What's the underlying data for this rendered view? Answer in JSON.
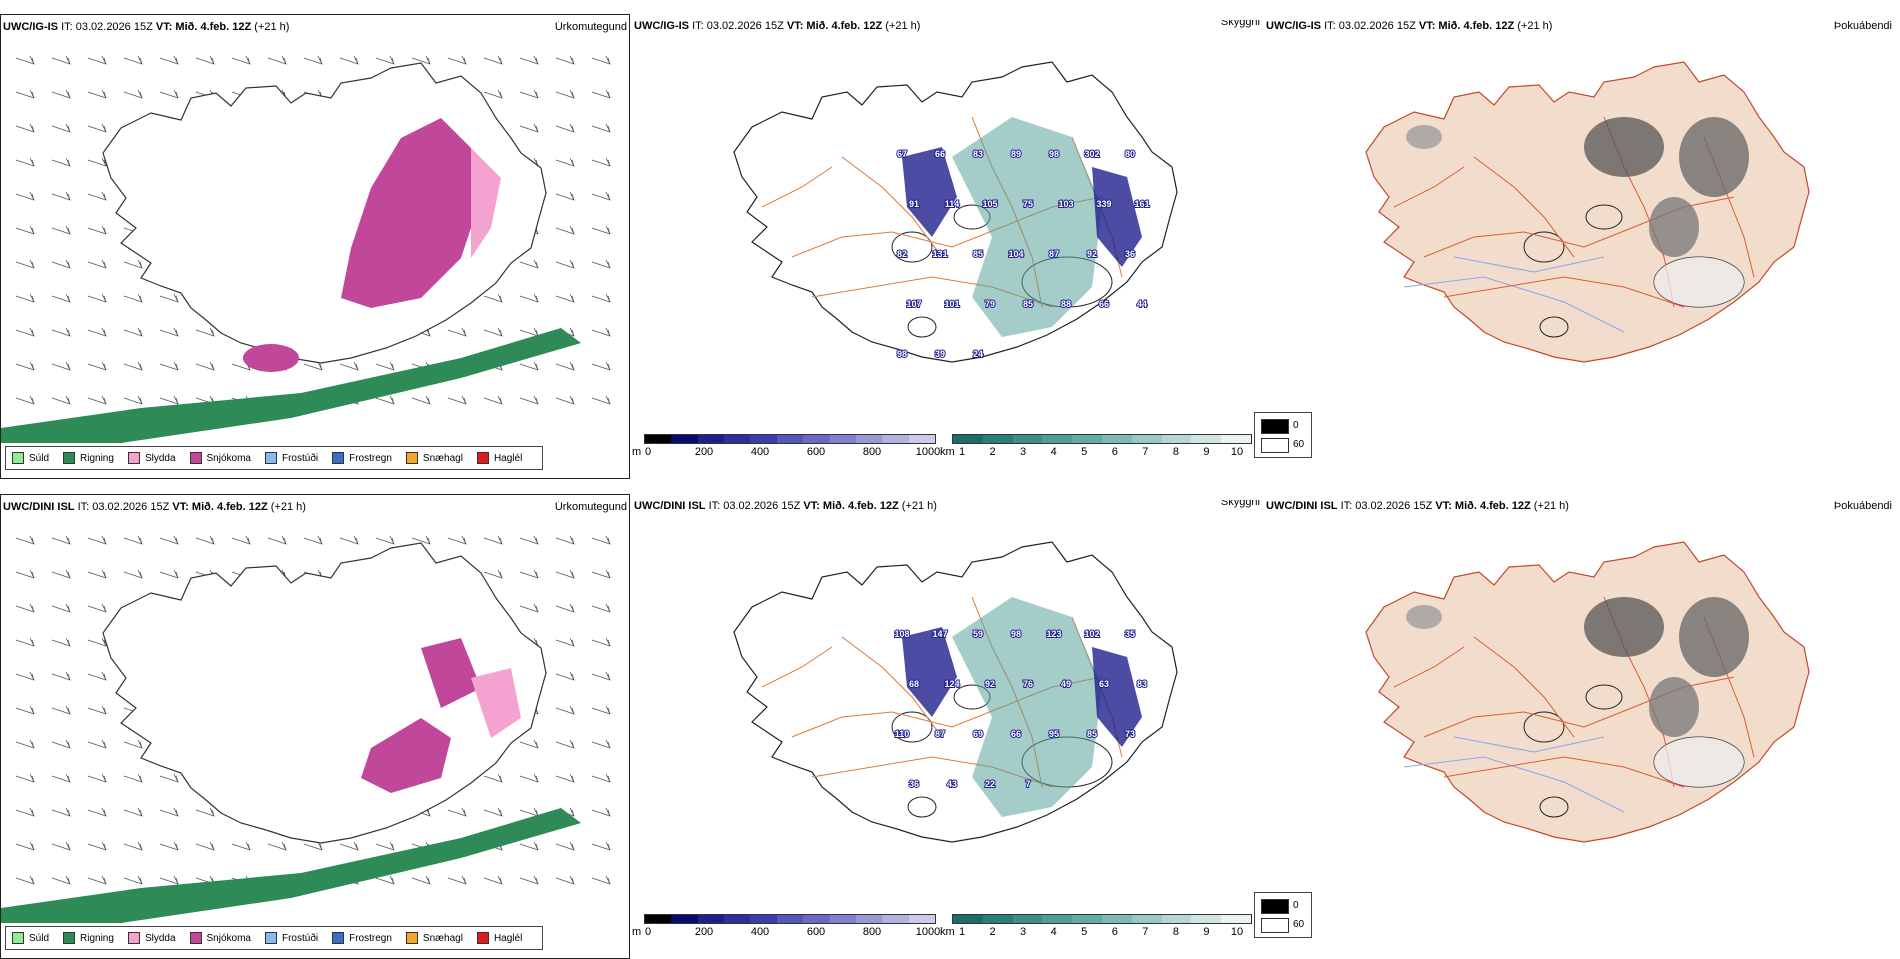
{
  "rows": [
    {
      "model": "UWC/IG-IS",
      "it_label": "IT: 03.02.2026 15Z",
      "vt_label": "VT: Mið. 4.feb. 12Z",
      "lead": "(+21 h)",
      "titles": {
        "precip": "Úrkomutegund",
        "visibility": "Skyggni",
        "fog": "Þokuábendi"
      },
      "vis_numbers": [
        "67",
        "66",
        "83",
        "89",
        "98",
        "302",
        "80",
        "91",
        "114",
        "105",
        "75",
        "103",
        "339",
        "161",
        "82",
        "131",
        "85",
        "104",
        "87",
        "92",
        "36",
        "107",
        "101",
        "79",
        "85",
        "88",
        "66",
        "44",
        "98",
        "39",
        "24"
      ]
    },
    {
      "model": "UWC/DINI ISL",
      "it_label": "IT: 03.02.2026 15Z",
      "vt_label": "VT: Mið. 4.feb. 12Z",
      "lead": "(+21 h)",
      "titles": {
        "precip": "Úrkomutegund",
        "visibility": "Skyggni",
        "fog": "Þokuábendi"
      },
      "vis_numbers": [
        "108",
        "147",
        "59",
        "98",
        "123",
        "102",
        "35",
        "68",
        "124",
        "92",
        "76",
        "49",
        "63",
        "83",
        "110",
        "87",
        "69",
        "66",
        "95",
        "85",
        "73",
        "36",
        "43",
        "22",
        "7"
      ]
    }
  ],
  "precip_legend": [
    {
      "label": "Súld",
      "color": "#90ee90"
    },
    {
      "label": "Rigning",
      "color": "#2e8b57"
    },
    {
      "label": "Slydda",
      "color": "#f4a3d0"
    },
    {
      "label": "Snjókoma",
      "color": "#c0479a"
    },
    {
      "label": "Frostúði",
      "color": "#8ab8f0"
    },
    {
      "label": "Frostregn",
      "color": "#3a6fc4"
    },
    {
      "label": "Snæhagl",
      "color": "#f5a623"
    },
    {
      "label": "Haglél",
      "color": "#e01b1b"
    }
  ],
  "height_scale": {
    "unit": "m",
    "ticks": [
      "0",
      "200",
      "400",
      "600",
      "800",
      "1000"
    ],
    "colors": [
      "#000000",
      "#0a0a6e",
      "#1f1f8f",
      "#2e2ea0",
      "#3d3db0",
      "#5656bb",
      "#6a6ac4",
      "#8080cc",
      "#9898d6",
      "#b2b2e0",
      "#ccccea"
    ]
  },
  "km_scale": {
    "unit": "km",
    "ticks": [
      "1",
      "2",
      "3",
      "4",
      "5",
      "6",
      "7",
      "8",
      "9",
      "10"
    ],
    "colors": [
      "#1b6e68",
      "#2a7f78",
      "#3b8f88",
      "#4c9f98",
      "#62aca6",
      "#7dbab5",
      "#9ac8c4",
      "#b6d7d3",
      "#d1e6e3",
      "#eaf3f2"
    ]
  },
  "fog_legend": {
    "values": [
      "0",
      "60"
    ]
  },
  "colors": {
    "land_fog": "#f2dccb",
    "roads": "#e07a33",
    "roads_fog": "#e05a33",
    "rivers": "#8aa6f0",
    "snow": "#c0479a",
    "sleet": "#f4a3d0",
    "rain": "#2e8b57"
  }
}
